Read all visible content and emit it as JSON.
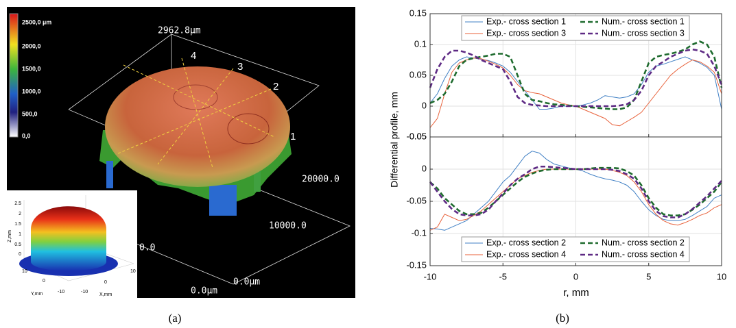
{
  "panel_a": {
    "caption": "(a)",
    "colorbar_labels": [
      "2500,0 µm",
      "2000,0",
      "1500,0",
      "1000,0",
      "500,0",
      "0,0"
    ],
    "z_max_label": "2962.8µm",
    "section_labels": [
      "1",
      "2",
      "3",
      "4"
    ],
    "axis_labels": [
      "20000.0",
      "10000.0",
      "0.0",
      "0.0µm",
      "0.0µm"
    ],
    "inset": {
      "zlabel": "Z,mm",
      "zticks": [
        "2.5",
        "2",
        "1.5",
        "1",
        "0.5",
        "0"
      ],
      "ylabel": "Y,mm",
      "xlabel": "X,mm",
      "yticks": [
        "10",
        "0",
        "-10"
      ],
      "xticks": [
        "-10",
        "0",
        "10"
      ]
    }
  },
  "figure_b": {
    "caption": "(b)",
    "xlabel": "r, mm",
    "ylabel": "Differential profile, mm"
  },
  "chart_data": [
    {
      "type": "line",
      "legend": "top",
      "grid": true,
      "x": [
        -10,
        -9.5,
        -9,
        -8.5,
        -8,
        -7.5,
        -7,
        -6.5,
        -6,
        -5.5,
        -5,
        -4.5,
        -4,
        -3.5,
        -3,
        -2.5,
        -2,
        -1.5,
        -1,
        -0.5,
        0,
        0.5,
        1,
        1.5,
        2,
        2.5,
        3,
        3.5,
        4,
        4.5,
        5,
        5.5,
        6,
        6.5,
        7,
        7.5,
        8,
        8.5,
        9,
        9.5,
        10
      ],
      "xlim": [
        -10,
        10
      ],
      "xticks": [
        -10,
        -5,
        0,
        5,
        10
      ],
      "ylim": [
        -0.05,
        0.15
      ],
      "yticks": [
        -0.05,
        0,
        0.05,
        0.1,
        0.15
      ],
      "series": [
        {
          "name": "Exp.- cross section 1",
          "color": "#3f7fc4",
          "style": "solid",
          "values": [
            0.005,
            0.02,
            0.045,
            0.065,
            0.075,
            0.08,
            0.078,
            0.076,
            0.074,
            0.07,
            0.065,
            0.055,
            0.04,
            0.025,
            0.01,
            -0.005,
            -0.005,
            -0.003,
            0,
            0,
            0,
            0.002,
            0.005,
            0.01,
            0.017,
            0.015,
            0.013,
            0.015,
            0.02,
            0.035,
            0.055,
            0.065,
            0.068,
            0.072,
            0.076,
            0.08,
            0.075,
            0.07,
            0.063,
            0.05,
            -0.005
          ]
        },
        {
          "name": "Exp.- cross section 3",
          "color": "#e8613a",
          "style": "solid",
          "values": [
            -0.035,
            -0.02,
            0.02,
            0.055,
            0.07,
            0.075,
            0.078,
            0.077,
            0.073,
            0.068,
            0.062,
            0.05,
            0.035,
            0.025,
            0.022,
            0.02,
            0.015,
            0.01,
            0.005,
            0.002,
            0,
            -0.005,
            -0.01,
            -0.015,
            -0.02,
            -0.03,
            -0.032,
            -0.025,
            -0.018,
            -0.01,
            0.005,
            0.02,
            0.035,
            0.05,
            0.06,
            0.068,
            0.075,
            0.072,
            0.065,
            0.055,
            0.02
          ]
        },
        {
          "name": "Num.- cross section 1",
          "color": "#1e6b2e",
          "style": "dashed",
          "values": [
            0.005,
            0.01,
            0.02,
            0.04,
            0.065,
            0.075,
            0.078,
            0.08,
            0.082,
            0.085,
            0.085,
            0.08,
            0.05,
            0.02,
            0.01,
            0.008,
            0.005,
            0.003,
            0.002,
            0.001,
            0,
            -0.001,
            -0.002,
            -0.003,
            -0.004,
            -0.005,
            -0.005,
            -0.002,
            0.01,
            0.04,
            0.07,
            0.08,
            0.083,
            0.085,
            0.088,
            0.092,
            0.1,
            0.105,
            0.1,
            0.08,
            0.03
          ]
        },
        {
          "name": "Num.- cross section 3",
          "color": "#5e2a84",
          "style": "dashed",
          "values": [
            0.03,
            0.06,
            0.08,
            0.09,
            0.09,
            0.087,
            0.082,
            0.075,
            0.07,
            0.065,
            0.06,
            0.04,
            0.015,
            0.005,
            0.002,
            0.001,
            0,
            0,
            0,
            0,
            0,
            0,
            0,
            0,
            0,
            0,
            0.001,
            0.003,
            0.01,
            0.025,
            0.05,
            0.065,
            0.072,
            0.08,
            0.085,
            0.09,
            0.092,
            0.09,
            0.085,
            0.065,
            0.035
          ]
        }
      ]
    },
    {
      "type": "line",
      "legend": "bottom",
      "grid": true,
      "x": [
        -10,
        -9.5,
        -9,
        -8.5,
        -8,
        -7.5,
        -7,
        -6.5,
        -6,
        -5.5,
        -5,
        -4.5,
        -4,
        -3.5,
        -3,
        -2.5,
        -2,
        -1.5,
        -1,
        -0.5,
        0,
        0.5,
        1,
        1.5,
        2,
        2.5,
        3,
        3.5,
        4,
        4.5,
        5,
        5.5,
        6,
        6.5,
        7,
        7.5,
        8,
        8.5,
        9,
        9.5,
        10
      ],
      "xlim": [
        -10,
        10
      ],
      "xticks": [
        -10,
        -5,
        0,
        5,
        10
      ],
      "ylim": [
        -0.15,
        0.05
      ],
      "yticks": [
        -0.15,
        -0.1,
        -0.05,
        0,
        0.05
      ],
      "series": [
        {
          "name": "Exp.- cross section 2",
          "color": "#3f7fc4",
          "style": "solid",
          "values": [
            -0.092,
            -0.093,
            -0.095,
            -0.09,
            -0.085,
            -0.08,
            -0.07,
            -0.06,
            -0.05,
            -0.035,
            -0.02,
            -0.01,
            0.005,
            0.02,
            0.028,
            0.025,
            0.015,
            0.008,
            0.005,
            0.002,
            0,
            -0.003,
            -0.008,
            -0.012,
            -0.015,
            -0.017,
            -0.02,
            -0.025,
            -0.035,
            -0.05,
            -0.063,
            -0.072,
            -0.078,
            -0.08,
            -0.08,
            -0.078,
            -0.072,
            -0.065,
            -0.058,
            -0.045,
            -0.04
          ]
        },
        {
          "name": "Exp.- cross section 4",
          "color": "#e8613a",
          "style": "solid",
          "values": [
            -0.095,
            -0.09,
            -0.07,
            -0.075,
            -0.08,
            -0.078,
            -0.072,
            -0.065,
            -0.055,
            -0.045,
            -0.035,
            -0.025,
            -0.015,
            -0.01,
            -0.005,
            -0.002,
            0,
            0,
            0,
            0,
            0,
            0,
            0,
            0,
            0,
            -0.002,
            -0.005,
            -0.01,
            -0.02,
            -0.035,
            -0.055,
            -0.07,
            -0.08,
            -0.085,
            -0.087,
            -0.083,
            -0.078,
            -0.072,
            -0.068,
            -0.06,
            -0.055
          ]
        },
        {
          "name": "Num.- cross section 2",
          "color": "#1e6b2e",
          "style": "dashed",
          "values": [
            -0.02,
            -0.03,
            -0.045,
            -0.055,
            -0.065,
            -0.07,
            -0.07,
            -0.068,
            -0.06,
            -0.05,
            -0.04,
            -0.03,
            -0.02,
            -0.012,
            -0.007,
            -0.003,
            -0.001,
            0,
            0,
            0,
            0,
            0,
            0.001,
            0.002,
            0.002,
            0.002,
            0.001,
            -0.003,
            -0.01,
            -0.025,
            -0.045,
            -0.06,
            -0.07,
            -0.072,
            -0.072,
            -0.07,
            -0.063,
            -0.055,
            -0.045,
            -0.035,
            -0.02
          ]
        },
        {
          "name": "Num.- cross section 4",
          "color": "#5e2a84",
          "style": "dashed",
          "values": [
            -0.02,
            -0.035,
            -0.05,
            -0.062,
            -0.07,
            -0.072,
            -0.072,
            -0.07,
            -0.063,
            -0.05,
            -0.038,
            -0.025,
            -0.015,
            -0.008,
            0,
            0.004,
            0.004,
            0.003,
            0.002,
            0.001,
            0,
            0,
            0,
            0,
            0,
            -0.001,
            -0.003,
            -0.008,
            -0.015,
            -0.03,
            -0.05,
            -0.065,
            -0.073,
            -0.075,
            -0.075,
            -0.07,
            -0.062,
            -0.052,
            -0.042,
            -0.03,
            -0.018
          ]
        }
      ]
    }
  ]
}
